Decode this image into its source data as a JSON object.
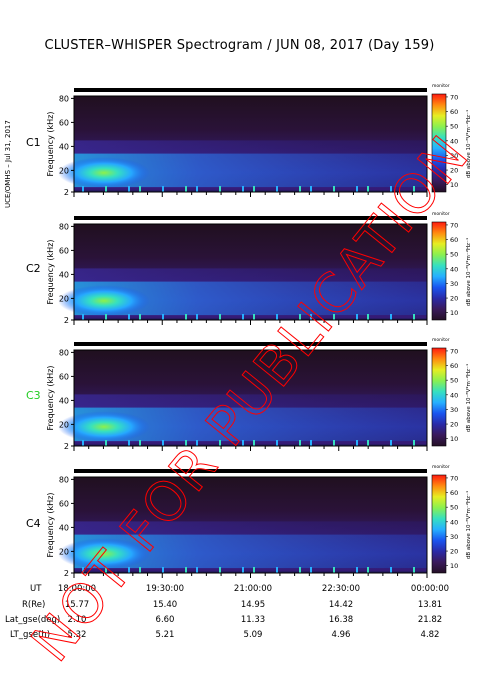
{
  "title": "CLUSTER–WHISPER Spectrogram / JUN 08, 2017 (Day 159)",
  "side_credit": "UCE/OMHS – Jul 31, 2017",
  "watermark": "NOT FOR PUBLICATION",
  "colors": {
    "background_dark": "#240f24",
    "colormap": [
      "#241026",
      "#3a1a5c",
      "#2a2aa8",
      "#1a55f0",
      "#26b0ff",
      "#36e0c0",
      "#8af050",
      "#e6ee22",
      "#ff8a10",
      "#ff1a10"
    ],
    "watermark": "#ff0000",
    "c3_label": "#22cc22"
  },
  "colorbar": {
    "unit_top": "monitor",
    "label": "dB above 10⁻⁸V²m⁻²Hz⁻¹",
    "ticks": [
      10,
      20,
      30,
      40,
      50,
      60,
      70
    ],
    "range": [
      5,
      72
    ]
  },
  "axis_labels": {
    "y": "Frequency (kHz)"
  },
  "chart_data": [
    {
      "type": "heatmap",
      "panel": "C1",
      "ylabel": "Frequency (kHz)",
      "ylim": [
        2,
        82
      ],
      "yticks": [
        2,
        20,
        40,
        60,
        80
      ],
      "x_start": "18:00:00",
      "x_end": "00:00:00",
      "zlim": [
        5,
        72
      ]
    },
    {
      "type": "heatmap",
      "panel": "C2",
      "ylabel": "Frequency (kHz)",
      "ylim": [
        2,
        82
      ],
      "yticks": [
        2,
        20,
        40,
        60,
        80
      ],
      "x_start": "18:00:00",
      "x_end": "00:00:00",
      "zlim": [
        5,
        72
      ]
    },
    {
      "type": "heatmap",
      "panel": "C3",
      "ylabel": "Frequency (kHz)",
      "ylim": [
        2,
        82
      ],
      "yticks": [
        2,
        20,
        40,
        60,
        80
      ],
      "x_start": "18:00:00",
      "x_end": "00:00:00",
      "zlim": [
        5,
        72
      ]
    },
    {
      "type": "heatmap",
      "panel": "C4",
      "ylabel": "Frequency (kHz)",
      "ylim": [
        2,
        82
      ],
      "yticks": [
        2,
        20,
        40,
        60,
        80
      ],
      "x_start": "18:00:00",
      "x_end": "00:00:00",
      "zlim": [
        5,
        72
      ]
    }
  ],
  "panels": [
    {
      "label": "C1"
    },
    {
      "label": "C2"
    },
    {
      "label": "C3"
    },
    {
      "label": "C4"
    }
  ],
  "footer": {
    "rows": [
      {
        "label": "UT",
        "values": [
          "18:00:00",
          "19:30:00",
          "21:00:00",
          "22:30:00",
          "00:00:00"
        ]
      },
      {
        "label": "R(Re)",
        "values": [
          "15.77",
          "15.40",
          "14.95",
          "14.42",
          "13.81"
        ]
      },
      {
        "label": "Lat_gse(deg)",
        "values": [
          "2.10",
          "6.60",
          "11.33",
          "16.38",
          "21.82"
        ]
      },
      {
        "label": "LT_gse(h)",
        "values": [
          "5.32",
          "5.21",
          "5.09",
          "4.96",
          "4.82"
        ]
      }
    ]
  }
}
